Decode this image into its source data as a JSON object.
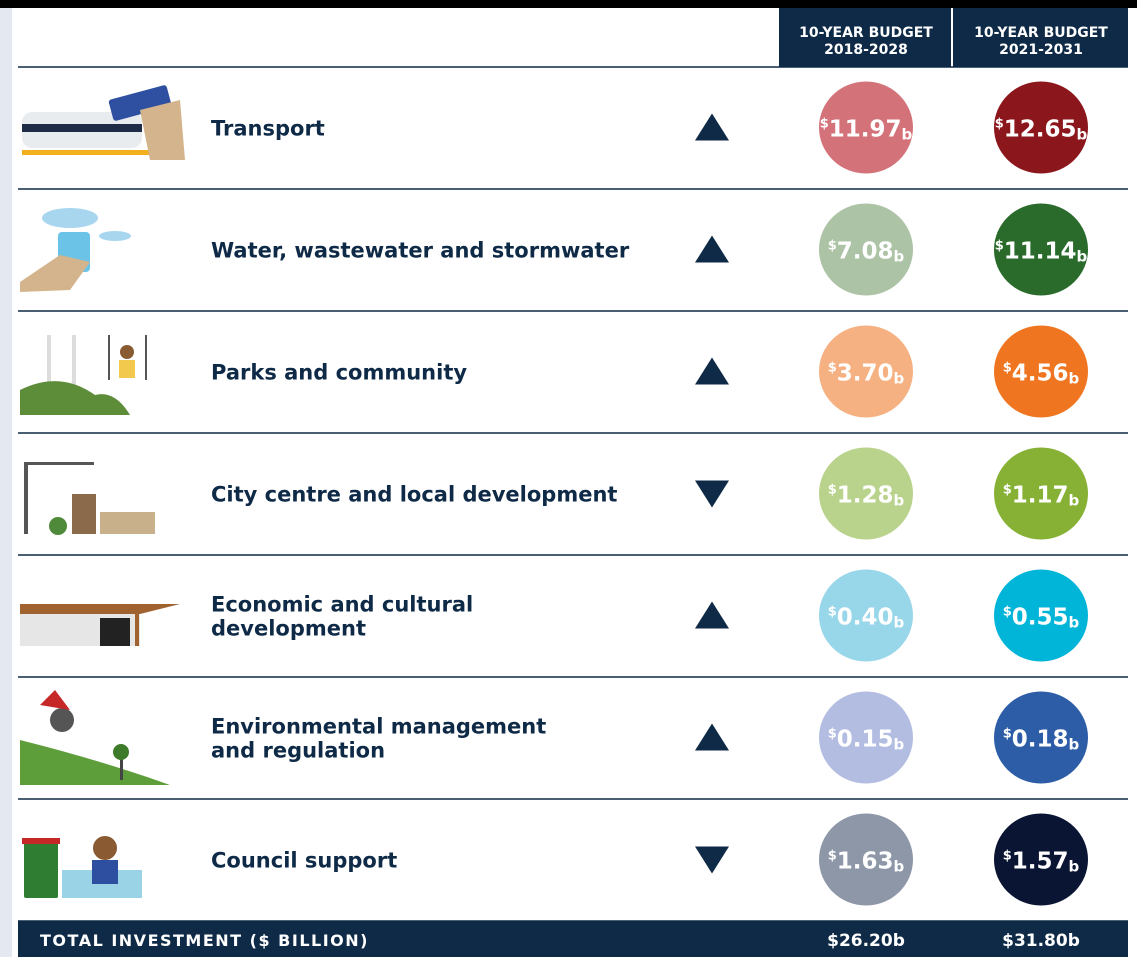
{
  "header": {
    "columns": [
      [
        "10-YEAR BUDGET",
        "2018-2028"
      ],
      [
        "10-YEAR BUDGET",
        "2021-2031"
      ]
    ]
  },
  "rows": [
    {
      "label": [
        "Transport"
      ],
      "direction": "up",
      "colors": [
        "#d4727a",
        "#8b161c"
      ],
      "budgets": [
        {
          "unit": "$",
          "amount": "11.97",
          "scale": "b"
        },
        {
          "unit": "$",
          "amount": "12.65",
          "scale": "b"
        }
      ]
    },
    {
      "label": [
        "Water, wastewater and stormwater"
      ],
      "direction": "up",
      "colors": [
        "#adc3a6",
        "#2a6b2c"
      ],
      "budgets": [
        {
          "unit": "$",
          "amount": "7.08",
          "scale": "b"
        },
        {
          "unit": "$",
          "amount": "11.14",
          "scale": "b"
        }
      ]
    },
    {
      "label": [
        "Parks and community"
      ],
      "direction": "up",
      "colors": [
        "#f6b183",
        "#ef7520"
      ],
      "budgets": [
        {
          "unit": "$",
          "amount": "3.70",
          "scale": "b"
        },
        {
          "unit": "$",
          "amount": "4.56",
          "scale": "b"
        }
      ]
    },
    {
      "label": [
        "City centre and local development"
      ],
      "direction": "down",
      "colors": [
        "#b9d38c",
        "#86b135"
      ],
      "budgets": [
        {
          "unit": "$",
          "amount": "1.28",
          "scale": "b"
        },
        {
          "unit": "$",
          "amount": "1.17",
          "scale": "b"
        }
      ]
    },
    {
      "label": [
        "Economic and cultural",
        "development"
      ],
      "direction": "up",
      "colors": [
        "#98d6ea",
        "#00b5d8"
      ],
      "budgets": [
        {
          "unit": "$",
          "amount": "0.40",
          "scale": "b"
        },
        {
          "unit": "$",
          "amount": "0.55",
          "scale": "b"
        }
      ]
    },
    {
      "label": [
        "Environmental management",
        "and regulation"
      ],
      "direction": "up",
      "colors": [
        "#b3bde1",
        "#2d5da7"
      ],
      "budgets": [
        {
          "unit": "$",
          "amount": "0.15",
          "scale": "b"
        },
        {
          "unit": "$",
          "amount": "0.18",
          "scale": "b"
        }
      ]
    },
    {
      "label": [
        "Council support"
      ],
      "direction": "down",
      "colors": [
        "#8d97a7",
        "#0a1533"
      ],
      "budgets": [
        {
          "unit": "$",
          "amount": "1.63",
          "scale": "b"
        },
        {
          "unit": "$",
          "amount": "1.57",
          "scale": "b"
        }
      ]
    }
  ],
  "total": {
    "label": "TOTAL INVESTMENT ($ BILLION)",
    "values": [
      "$26.20b",
      "$31.80b"
    ]
  }
}
